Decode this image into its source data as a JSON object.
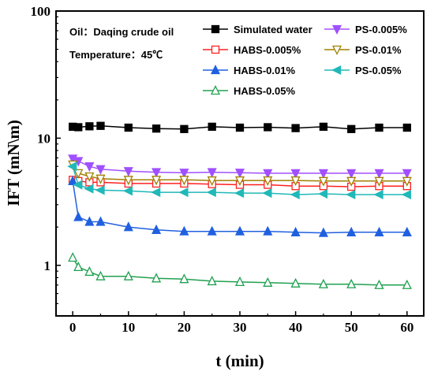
{
  "chart_data": {
    "type": "line",
    "title": "",
    "xlabel": "t (min)",
    "ylabel": "IFT  (mN\\m)",
    "xlim": [
      -3,
      63
    ],
    "ylim": [
      0.4,
      100
    ],
    "yscale": "log",
    "xticks": [
      "0",
      "10",
      "20",
      "30",
      "40",
      "50",
      "60"
    ],
    "yticks": [
      "1",
      "10",
      "100"
    ],
    "grid": false,
    "legend_position": "top-right",
    "annotations": [
      "Oil：Daqing crude oil",
      "Temperature：45℃"
    ],
    "x": [
      0,
      1,
      3,
      5,
      10,
      15,
      20,
      25,
      30,
      35,
      40,
      45,
      50,
      55,
      60
    ],
    "series": [
      {
        "name": "Simulated water",
        "color": "#000000",
        "marker": "square-filled",
        "values": [
          12.3,
          12.2,
          12.4,
          12.5,
          12.1,
          11.9,
          11.8,
          12.3,
          12.1,
          12.2,
          12.0,
          12.3,
          11.8,
          12.1,
          12.1
        ]
      },
      {
        "name": "HABS-0.005%",
        "color": "#ff2020",
        "marker": "square-open",
        "values": [
          4.7,
          4.6,
          4.5,
          4.5,
          4.4,
          4.4,
          4.4,
          4.35,
          4.3,
          4.3,
          4.2,
          4.2,
          4.15,
          4.2,
          4.2
        ]
      },
      {
        "name": "HABS-0.01%",
        "color": "#2060e0",
        "marker": "triangle-up-filled",
        "values": [
          4.6,
          2.4,
          2.2,
          2.2,
          2.0,
          1.9,
          1.85,
          1.85,
          1.85,
          1.85,
          1.82,
          1.8,
          1.82,
          1.82,
          1.82
        ]
      },
      {
        "name": "HABS-0.05%",
        "color": "#20a050",
        "marker": "triangle-up-open",
        "values": [
          1.15,
          0.97,
          0.89,
          0.82,
          0.82,
          0.79,
          0.78,
          0.75,
          0.74,
          0.73,
          0.72,
          0.71,
          0.71,
          0.7,
          0.7
        ]
      },
      {
        "name": "PS-0.005%",
        "color": "#a050ff",
        "marker": "triangle-down-filled",
        "values": [
          6.9,
          6.6,
          6.0,
          5.7,
          5.5,
          5.4,
          5.35,
          5.4,
          5.35,
          5.3,
          5.3,
          5.3,
          5.3,
          5.3,
          5.3
        ]
      },
      {
        "name": "PS-0.01%",
        "color": "#a08000",
        "marker": "triangle-down-open",
        "values": [
          6.2,
          5.3,
          5.0,
          4.8,
          4.7,
          4.7,
          4.7,
          4.65,
          4.65,
          4.65,
          4.65,
          4.6,
          4.6,
          4.6,
          4.6
        ]
      },
      {
        "name": "PS-0.05%",
        "color": "#20b8b8",
        "marker": "triangle-left-filled",
        "values": [
          6.0,
          4.3,
          4.0,
          3.9,
          3.85,
          3.75,
          3.75,
          3.75,
          3.7,
          3.7,
          3.6,
          3.65,
          3.6,
          3.6,
          3.6
        ]
      }
    ]
  }
}
